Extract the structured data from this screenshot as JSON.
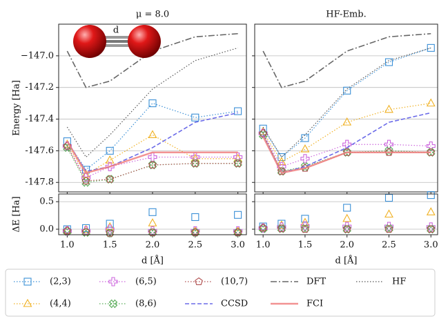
{
  "chart_data": [
    {
      "type": "line",
      "title": "μ = 8.0",
      "ylabel": "Energy [Ha]",
      "annotation": "d",
      "x": [
        1.0,
        1.22,
        1.5,
        2.0,
        2.5,
        3.0
      ],
      "xlim": [
        0.9,
        3.1
      ],
      "ylim": [
        -147.86,
        -146.8
      ],
      "grid": true,
      "xtick_labels": false,
      "ytick_labels": true,
      "xticks": [
        1.0,
        1.5,
        2.0,
        2.5,
        3.0
      ],
      "yticks": [
        -147.8,
        -147.6,
        -147.4,
        -147.2,
        {
          "value": -147,
          "label": "−147.0"
        }
      ],
      "series": [
        {
          "name": "(2,3)",
          "color": "#3a8fd6",
          "marker": "square",
          "dash": "dotted",
          "values": [
            -147.54,
            -147.72,
            -147.6,
            -147.3,
            -147.39,
            -147.35
          ]
        },
        {
          "name": "(4,4)",
          "color": "#f0b020",
          "marker": "triangle",
          "dash": "dotted",
          "values": [
            -147.56,
            -147.75,
            -147.66,
            -147.5,
            -147.65,
            -147.65
          ]
        },
        {
          "name": "(6,5)",
          "color": "#cc66dd",
          "marker": "plus",
          "dash": "dotted",
          "values": [
            -147.57,
            -147.77,
            -147.7,
            -147.64,
            -147.64,
            -147.64
          ]
        },
        {
          "name": "(8,6)",
          "color": "#55aa55",
          "marker": "xcircle",
          "dash": "dotted",
          "values": [
            -147.58,
            -147.8,
            -147.78,
            -147.69,
            -147.68,
            -147.68
          ]
        },
        {
          "name": "(10,7)",
          "color": "#b05050",
          "marker": "pentagon",
          "dash": "dotted",
          "values": [
            -147.57,
            -147.79,
            -147.78,
            -147.69,
            -147.68,
            -147.68
          ]
        },
        {
          "name": "CCSD",
          "color": "#6a6ae8",
          "marker": null,
          "dash": "dashed",
          "values": [
            -147.54,
            -147.73,
            -147.7,
            -147.58,
            -147.42,
            -147.36
          ]
        },
        {
          "name": "DFT",
          "color": "#666666",
          "marker": null,
          "dash": "dashdot",
          "values": [
            -146.97,
            -147.2,
            -147.16,
            -146.97,
            -146.88,
            -146.86
          ]
        },
        {
          "name": "FCI",
          "color": "#f08080",
          "marker": null,
          "dash": "solid",
          "values": [
            -147.54,
            -147.74,
            -147.7,
            -147.61,
            -147.61,
            -147.61
          ]
        },
        {
          "name": "HF",
          "color": "#555555",
          "marker": null,
          "dash": "dotted",
          "values": [
            -147.45,
            -147.64,
            -147.5,
            -147.21,
            -147.03,
            -146.95
          ]
        }
      ]
    },
    {
      "type": "scatter",
      "ylabel": "ΔE [Ha]",
      "xlabel": "d [Å]",
      "x": [
        1.0,
        1.22,
        1.5,
        2.0,
        2.5,
        3.0
      ],
      "xlim": [
        0.9,
        3.1
      ],
      "ylim": [
        -0.1,
        0.64
      ],
      "grid": true,
      "xtick_labels": true,
      "ytick_labels": true,
      "xticks": [
        {
          "value": 1,
          "label": "1.0"
        },
        1.5,
        {
          "value": 2,
          "label": "2.0"
        },
        2.5,
        {
          "value": 3,
          "label": "3.0"
        }
      ],
      "yticks": [
        {
          "value": 0,
          "label": "0.0"
        },
        0.5
      ],
      "series": [
        {
          "color": "#3a8fd6",
          "marker": "square",
          "values": [
            0.0,
            0.02,
            0.1,
            0.31,
            0.22,
            0.26
          ]
        },
        {
          "color": "#f0b020",
          "marker": "triangle",
          "values": [
            -0.02,
            -0.01,
            0.04,
            0.11,
            -0.04,
            -0.04
          ]
        },
        {
          "color": "#cc66dd",
          "marker": "plus",
          "values": [
            -0.03,
            -0.03,
            0.0,
            -0.03,
            -0.03,
            -0.03
          ]
        },
        {
          "color": "#55aa55",
          "marker": "xcircle",
          "values": [
            -0.04,
            -0.06,
            -0.07,
            -0.06,
            -0.06,
            -0.06
          ]
        },
        {
          "color": "#b05050",
          "marker": "pentagon",
          "values": [
            -0.03,
            -0.05,
            -0.07,
            -0.06,
            -0.06,
            -0.06
          ]
        }
      ]
    },
    {
      "type": "line",
      "title": "HF-Emb.",
      "x": [
        1.0,
        1.22,
        1.5,
        2.0,
        2.5,
        3.0
      ],
      "xlim": [
        0.9,
        3.08
      ],
      "ylim": [
        -147.86,
        -146.8
      ],
      "grid": true,
      "xtick_labels": false,
      "ytick_labels": false,
      "xticks": [
        1.0,
        1.5,
        2.0,
        2.5,
        3.0
      ],
      "yticks": [
        -147.8,
        -147.6,
        -147.4,
        -147.2,
        -147
      ],
      "series": [
        {
          "color": "#3a8fd6",
          "marker": "square",
          "dash": "dotted",
          "values": [
            -147.46,
            -147.64,
            -147.52,
            -147.22,
            -147.04,
            -146.95
          ]
        },
        {
          "color": "#f0b020",
          "marker": "triangle",
          "dash": "dotted",
          "values": [
            -147.48,
            -147.67,
            -147.59,
            -147.42,
            -147.34,
            -147.3
          ]
        },
        {
          "color": "#cc66dd",
          "marker": "plus",
          "dash": "dotted",
          "values": [
            -147.49,
            -147.7,
            -147.65,
            -147.56,
            -147.56,
            -147.57
          ]
        },
        {
          "color": "#55aa55",
          "marker": "xcircle",
          "dash": "dotted",
          "values": [
            -147.5,
            -147.73,
            -147.7,
            -147.61,
            -147.6,
            -147.61
          ]
        },
        {
          "color": "#b05050",
          "marker": "pentagon",
          "dash": "dotted",
          "values": [
            -147.49,
            -147.73,
            -147.71,
            -147.61,
            -147.61,
            -147.61
          ]
        },
        {
          "color": "#6a6ae8",
          "marker": null,
          "dash": "dashed",
          "values": [
            -147.5,
            -147.74,
            -147.7,
            -147.58,
            -147.42,
            -147.36
          ]
        },
        {
          "color": "#666666",
          "marker": null,
          "dash": "dashdot",
          "values": [
            -146.97,
            -147.2,
            -147.16,
            -146.97,
            -146.88,
            -146.86
          ]
        },
        {
          "color": "#f08080",
          "marker": null,
          "dash": "solid",
          "values": [
            -147.51,
            -147.74,
            -147.71,
            -147.61,
            -147.61,
            -147.61
          ]
        },
        {
          "color": "#555555",
          "marker": null,
          "dash": "dotted",
          "values": [
            -147.45,
            -147.64,
            -147.5,
            -147.21,
            -147.03,
            -146.95
          ]
        }
      ]
    },
    {
      "type": "scatter",
      "xlabel": "d [Å]",
      "x": [
        1.0,
        1.22,
        1.5,
        2.0,
        2.5,
        3.0
      ],
      "xlim": [
        0.9,
        3.08
      ],
      "ylim": [
        -0.1,
        0.64
      ],
      "grid": true,
      "xtick_labels": true,
      "ytick_labels": false,
      "xticks": [
        {
          "value": 1,
          "label": "1.0"
        },
        1.5,
        {
          "value": 2,
          "label": "2.0"
        },
        2.5,
        {
          "value": 3,
          "label": "3.0"
        }
      ],
      "yticks": [
        0,
        0.5
      ],
      "series": [
        {
          "color": "#3a8fd6",
          "marker": "square",
          "values": [
            0.05,
            0.1,
            0.19,
            0.39,
            0.57,
            0.62
          ]
        },
        {
          "color": "#f0b020",
          "marker": "triangle",
          "values": [
            0.03,
            0.07,
            0.12,
            0.19,
            0.27,
            0.31
          ]
        },
        {
          "color": "#cc66dd",
          "marker": "plus",
          "values": [
            0.02,
            0.04,
            0.06,
            0.05,
            0.05,
            0.04
          ]
        },
        {
          "color": "#55aa55",
          "marker": "xcircle",
          "values": [
            0.01,
            0.01,
            0.01,
            0.0,
            0.01,
            0.0
          ]
        },
        {
          "color": "#b05050",
          "marker": "pentagon",
          "values": [
            0.02,
            0.01,
            0.0,
            0.0,
            0.0,
            0.0
          ]
        }
      ]
    }
  ]
}
